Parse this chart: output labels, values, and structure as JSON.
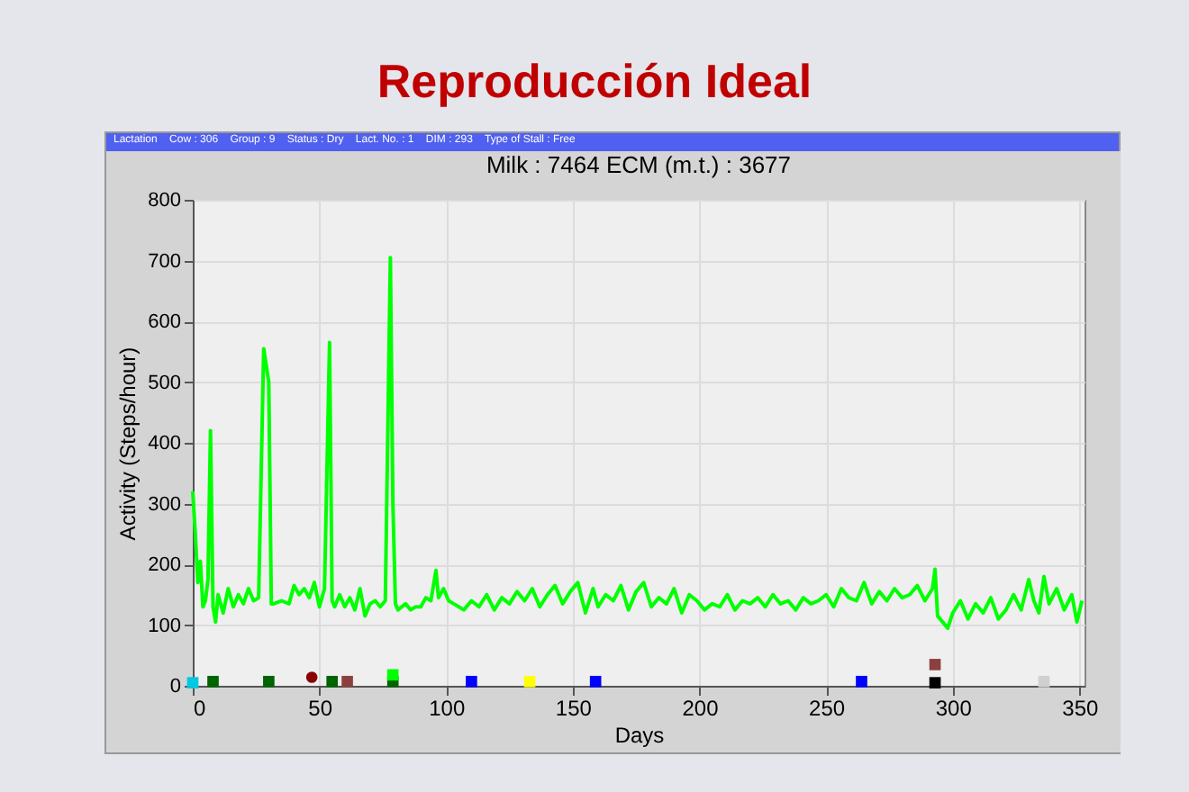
{
  "chart_data": {
    "type": "line",
    "title": "Reproducción Ideal",
    "subtitle": "Milk : 7464    ECM (m.t.) : 3677",
    "annotations": [
      "Lactation    Cow : 306    Group : 9    Status : Dry    Lact. No. : 1    DIM : 293    Type of Stall : Free"
    ],
    "xlabel": "Days",
    "ylabel": "Activity  (Steps/hour)",
    "xlim": [
      0,
      352
    ],
    "xticks": [
      0,
      50,
      100,
      150,
      200,
      250,
      300,
      350
    ],
    "ylim": [
      0,
      800
    ],
    "yticks": [
      0,
      100,
      200,
      300,
      400,
      500,
      600,
      700,
      800
    ],
    "grid": true,
    "series": [
      {
        "color": "#00ff00",
        "marker": "none",
        "line_style": "solid",
        "x": [
          0,
          1,
          2,
          3,
          4,
          5,
          6,
          7,
          8,
          9,
          10,
          12,
          14,
          16,
          18,
          20,
          22,
          24,
          26,
          28,
          30,
          31,
          32,
          35,
          38,
          40,
          42,
          44,
          46,
          48,
          50,
          52,
          54,
          55,
          56,
          58,
          60,
          62,
          64,
          66,
          68,
          70,
          72,
          74,
          76,
          78,
          79,
          80,
          81,
          84,
          86,
          88,
          90,
          92,
          94,
          96,
          97,
          99,
          101,
          103,
          105,
          107,
          110,
          113,
          116,
          119,
          122,
          125,
          128,
          131,
          134,
          137,
          140,
          143,
          146,
          149,
          152,
          155,
          158,
          160,
          163,
          166,
          169,
          172,
          175,
          178,
          181,
          184,
          187,
          190,
          193,
          196,
          199,
          202,
          205,
          208,
          211,
          214,
          217,
          220,
          223,
          226,
          229,
          232,
          235,
          238,
          241,
          244,
          247,
          250,
          253,
          256,
          259,
          262,
          265,
          268,
          271,
          274,
          277,
          280,
          283,
          286,
          289,
          292,
          293,
          294,
          296,
          298,
          300,
          303,
          306,
          309,
          312,
          315,
          318,
          321,
          324,
          327,
          330,
          332,
          334,
          336,
          338,
          341,
          344,
          347,
          349,
          351
        ],
        "values": [
          320,
          250,
          170,
          205,
          130,
          140,
          175,
          420,
          130,
          105,
          150,
          120,
          160,
          130,
          150,
          135,
          160,
          140,
          145,
          555,
          500,
          135,
          135,
          140,
          135,
          165,
          150,
          160,
          145,
          170,
          130,
          160,
          565,
          140,
          130,
          150,
          130,
          145,
          125,
          160,
          115,
          135,
          140,
          130,
          140,
          705,
          300,
          135,
          125,
          135,
          125,
          130,
          130,
          145,
          140,
          190,
          145,
          160,
          140,
          135,
          130,
          125,
          140,
          130,
          150,
          125,
          145,
          135,
          155,
          140,
          160,
          130,
          150,
          165,
          135,
          155,
          170,
          120,
          160,
          130,
          150,
          140,
          165,
          125,
          155,
          170,
          130,
          145,
          135,
          160,
          120,
          150,
          140,
          125,
          135,
          130,
          150,
          125,
          140,
          135,
          145,
          130,
          150,
          135,
          140,
          125,
          145,
          135,
          140,
          150,
          130,
          160,
          145,
          140,
          170,
          135,
          155,
          140,
          160,
          145,
          150,
          165,
          140,
          160,
          192,
          115,
          105,
          95,
          120,
          140,
          110,
          135,
          120,
          145,
          110,
          125,
          150,
          125,
          175,
          140,
          120,
          180,
          135,
          160,
          125,
          150,
          105,
          140
        ]
      },
      {
        "type": "scatter",
        "marker": "square",
        "x": [
          0,
          8,
          30,
          55,
          61,
          79,
          79,
          110,
          133,
          159,
          264,
          293,
          293,
          336
        ],
        "values": [
          5,
          7,
          7,
          7,
          7,
          7,
          18,
          7,
          7,
          7,
          7,
          5,
          35,
          7
        ],
        "colors": [
          "#00c8e0",
          "#006400",
          "#006400",
          "#006400",
          "#8b4040",
          "#006400",
          "#00ff00",
          "#0000ff",
          "#ffff00",
          "#0000ff",
          "#0000ff",
          "#000000",
          "#8b4040",
          "#d0d0d0"
        ]
      },
      {
        "type": "scatter",
        "marker": "circle",
        "x": [
          47
        ],
        "values": [
          14
        ],
        "colors": [
          "#8b0000"
        ]
      }
    ]
  }
}
